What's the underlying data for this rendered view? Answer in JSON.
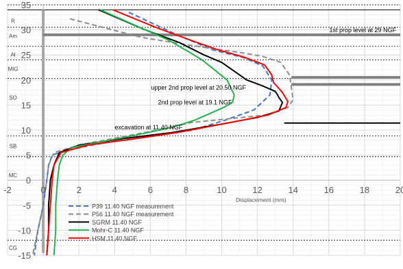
{
  "chart_data": {
    "type": "line",
    "title": "",
    "xlabel": "Displacement (mm)",
    "ylabel": "",
    "xlim": [
      -2,
      20
    ],
    "ylim": [
      -15,
      35
    ],
    "x_ticks": [
      -2,
      0,
      2,
      4,
      6,
      8,
      10,
      12,
      14,
      16,
      18,
      20
    ],
    "y_ticks": [
      -15,
      -10,
      -5,
      0,
      5,
      10,
      15,
      20,
      25,
      30,
      35
    ],
    "grid": true,
    "legend_position": "bottom-left",
    "colors": {
      "p39": "#4472c4",
      "p56": "#8c8c8c",
      "sgrm": "#000000",
      "mohr": "#22b14c",
      "hsm": "#ff0000",
      "wall": "#a6a6a6",
      "prop": "#808080",
      "excavation": "#000000",
      "grid": "#d9d9d9",
      "layer_line": "#000000"
    },
    "series": [
      {
        "name": "P39 11.40 NGF measurement",
        "style": "dashed",
        "color": "#4472c4",
        "points": [
          [
            4.8,
            33.5
          ],
          [
            7.5,
            29
          ],
          [
            9.5,
            26
          ],
          [
            11.2,
            24.5
          ],
          [
            12.3,
            22.8
          ],
          [
            12.8,
            20
          ],
          [
            12.7,
            17
          ],
          [
            11.8,
            14
          ],
          [
            10.2,
            12
          ],
          [
            8.4,
            10
          ],
          [
            6.0,
            8.7
          ],
          [
            3.5,
            7.5
          ],
          [
            1.3,
            6
          ],
          [
            0.5,
            5
          ],
          [
            0.3,
            3
          ],
          [
            0.2,
            0
          ],
          [
            0.0,
            -5
          ],
          [
            -0.3,
            -10
          ],
          [
            -0.5,
            -15
          ]
        ]
      },
      {
        "name": "P56 11.40 NGF measurement",
        "style": "dashed",
        "color": "#8c8c8c",
        "points": [
          [
            1.5,
            32.2
          ],
          [
            5.5,
            28.5
          ],
          [
            9,
            26.5
          ],
          [
            11,
            25.5
          ],
          [
            12.3,
            24.7
          ],
          [
            13.3,
            23.5
          ],
          [
            13.8,
            21
          ],
          [
            13.9,
            18.5
          ],
          [
            14.0,
            16
          ],
          [
            13.7,
            14.5
          ],
          [
            12.5,
            13
          ],
          [
            10.5,
            12.3
          ],
          [
            8.3,
            11.5
          ],
          [
            6.4,
            10
          ],
          [
            4.2,
            8.5
          ],
          [
            2.0,
            7
          ],
          [
            0.6,
            5.5
          ],
          [
            0.3,
            3
          ],
          [
            0.2,
            0
          ],
          [
            0.0,
            -5
          ],
          [
            -0.3,
            -10
          ],
          [
            -0.6,
            -15
          ]
        ]
      },
      {
        "name": "SGRM 11.40 NGF",
        "style": "solid",
        "color": "#000000",
        "points": [
          [
            3.1,
            34
          ],
          [
            5.7,
            30
          ],
          [
            7.6,
            27.5
          ],
          [
            9.0,
            25
          ],
          [
            10.0,
            23.5
          ],
          [
            11.4,
            20
          ],
          [
            12.3,
            18.8
          ],
          [
            13.0,
            17.7
          ],
          [
            13.1,
            17.2
          ],
          [
            13.2,
            16.5
          ],
          [
            13.4,
            15.5
          ],
          [
            13.2,
            13.8
          ],
          [
            12.0,
            12.5
          ],
          [
            10.0,
            11.2
          ],
          [
            7.2,
            9.5
          ],
          [
            4.5,
            8.3
          ],
          [
            2.0,
            7
          ],
          [
            0.9,
            5.5
          ],
          [
            0.6,
            3
          ],
          [
            0.4,
            0
          ],
          [
            0.3,
            -5
          ],
          [
            0.3,
            -10
          ],
          [
            0.2,
            -15
          ]
        ]
      },
      {
        "name": "Mohr-C 11.40 NGF",
        "style": "solid",
        "color": "#22b14c",
        "points": [
          [
            3.2,
            34
          ],
          [
            5.4,
            30.5
          ],
          [
            7.0,
            28
          ],
          [
            8.2,
            25.5
          ],
          [
            8.9,
            24
          ],
          [
            9.6,
            22
          ],
          [
            10.3,
            20
          ],
          [
            10.7,
            17
          ],
          [
            10.6,
            15.5
          ],
          [
            10.1,
            14.5
          ],
          [
            8.5,
            12
          ],
          [
            7.2,
            10.5
          ],
          [
            5.2,
            9
          ],
          [
            3.0,
            7.5
          ],
          [
            1.6,
            6.5
          ],
          [
            1.1,
            5
          ],
          [
            0.9,
            3
          ],
          [
            0.8,
            0
          ],
          [
            0.7,
            -5
          ],
          [
            0.7,
            -10
          ],
          [
            0.6,
            -15
          ]
        ]
      },
      {
        "name": "HSM 11.40 NGF",
        "style": "solid",
        "color": "#ff0000",
        "points": [
          [
            3.9,
            34
          ],
          [
            6.3,
            30.5
          ],
          [
            8.2,
            28
          ],
          [
            9.8,
            26
          ],
          [
            11.3,
            24.5
          ],
          [
            12.4,
            23
          ],
          [
            12.8,
            21
          ],
          [
            12.9,
            19.5
          ],
          [
            13.4,
            17.5
          ],
          [
            13.7,
            15.7
          ],
          [
            13.6,
            14.5
          ],
          [
            12.6,
            13
          ],
          [
            10.5,
            11.5
          ],
          [
            7.5,
            9.5
          ],
          [
            5.0,
            8.2
          ],
          [
            2.5,
            7
          ],
          [
            1.0,
            5.5
          ],
          [
            0.6,
            3
          ],
          [
            0.5,
            0
          ],
          [
            0.4,
            -5
          ],
          [
            0.3,
            -10
          ],
          [
            0.2,
            -15
          ]
        ]
      }
    ],
    "props": [
      {
        "label": "1st prop level at 29 NGF",
        "y": 29,
        "x_end": 20
      },
      {
        "label": "upper 2nd prop level at 20.50 NGF",
        "y": 20.5,
        "x_start": 13.9,
        "x_end": 20
      },
      {
        "label": "2nd prop level at 19.1 NGF",
        "y": 19.1,
        "x_start": 13.9,
        "x_end": 20
      }
    ],
    "excavation": {
      "label": "excavation at 11.40 NGF",
      "y": 11.4,
      "x_start": 13.5,
      "x_end": 20
    },
    "layers": [
      {
        "name": "R",
        "label_y": 31.8
      },
      {
        "name": "Am",
        "label_y": 28.8
      },
      {
        "name": "Al",
        "label_y": 25.1
      },
      {
        "name": "MIG",
        "label_y": 22.2
      },
      {
        "name": "SO",
        "label_y": 16.5
      },
      {
        "name": "SB",
        "label_y": 6.8
      },
      {
        "name": "MC",
        "label_y": 1.0
      },
      {
        "name": "CG",
        "label_y": -13.5
      }
    ],
    "layer_boundaries": [
      35,
      30.5,
      26.7,
      24,
      20.3,
      8.8,
      4.7,
      -12
    ]
  }
}
